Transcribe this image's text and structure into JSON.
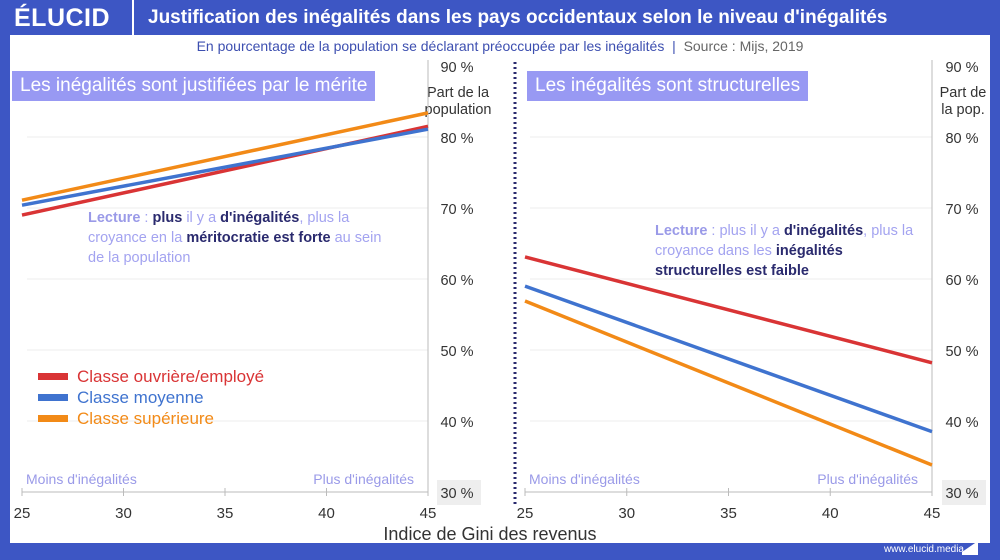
{
  "brand": "ÉLUCID",
  "title": "Justification des inégalités dans les pays occidentaux selon le niveau d'inégalités",
  "subtitle": "En pourcentage de la population se déclarant préoccupée par les inégalités",
  "source": "Source : Mijs, 2019",
  "footer": "www.elucid.media",
  "colors": {
    "frame": "#3d56c4",
    "red": "#d93435",
    "blue": "#3f73cf",
    "orange": "#f28a17",
    "badge": "#9899f3"
  },
  "legend": [
    "Classe ouvrière/employé",
    "Classe moyenne",
    "Classe supérieure"
  ],
  "chart_data": [
    {
      "type": "line",
      "title": "Les inégalités sont justifiées par le mérite",
      "ylabel": "Part de la population",
      "xlabel": "Indice de Gini des revenus",
      "xlim": [
        25,
        45
      ],
      "ylim": [
        30,
        90
      ],
      "xticks": [
        "25",
        "30",
        "35",
        "40",
        "45"
      ],
      "yticks": [
        "90 %",
        "80 %",
        "70 %",
        "60 %",
        "50 %",
        "40 %",
        "30 %"
      ],
      "x_annotations": [
        "Moins d'inégalités",
        "Plus d'inégalités"
      ],
      "lecture": {
        "p1": "Lecture",
        "p2": " : ",
        "p3": "plus",
        "p4": " il y a ",
        "p5": "d'inégalités",
        "p6": ", plus la croyance en la ",
        "p7": "méritocratie est forte",
        "p8": " au sein de la population"
      },
      "x": [
        25,
        45
      ],
      "series": [
        {
          "name": "Classe ouvrière/employé",
          "values": [
            69.0,
            81.5
          ]
        },
        {
          "name": "Classe moyenne",
          "values": [
            70.4,
            81.1
          ]
        },
        {
          "name": "Classe supérieure",
          "values": [
            71.1,
            83.4
          ]
        }
      ]
    },
    {
      "type": "line",
      "title": "Les inégalités sont structurelles",
      "ylabel": "Part de la pop.",
      "xlabel": "Indice de Gini des revenus",
      "xlim": [
        25,
        45
      ],
      "ylim": [
        30,
        90
      ],
      "xticks": [
        "25",
        "30",
        "35",
        "40",
        "45"
      ],
      "yticks": [
        "90 %",
        "80 %",
        "70 %",
        "60 %",
        "50 %",
        "40 %",
        "30 %"
      ],
      "x_annotations": [
        "Moins d'inégalités",
        "Plus d'inégalités"
      ],
      "lecture": {
        "p1": "Lecture",
        "p2": " : plus il y a ",
        "p3": "d'inégalités",
        "p4": ",",
        "p5": " plus la croyance dans les ",
        "p6": "inégalités structurelles est faible"
      },
      "x": [
        25,
        45
      ],
      "series": [
        {
          "name": "Classe ouvrière/employé",
          "values": [
            63.1,
            48.2
          ]
        },
        {
          "name": "Classe moyenne",
          "values": [
            59.0,
            38.5
          ]
        },
        {
          "name": "Classe supérieure",
          "values": [
            56.9,
            33.8
          ]
        }
      ]
    }
  ]
}
